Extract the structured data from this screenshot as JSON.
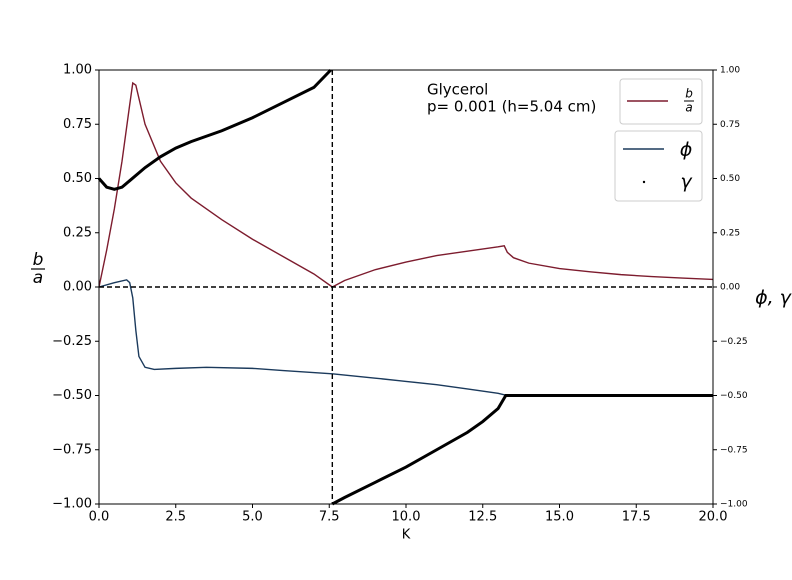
{
  "chart_data": {
    "type": "line",
    "xlabel": "K",
    "ylabel": {
      "numerator": "b",
      "denominator": "a"
    },
    "y2label": "ϕ, γ",
    "annotation": [
      "Glycerol",
      "p= 0.001 (h=5.04 cm)"
    ],
    "xlim": [
      0,
      20
    ],
    "ylim": [
      -1,
      1
    ],
    "y2lim": [
      -1,
      1
    ],
    "xticks": [
      {
        "value": 0,
        "label": "0.0"
      },
      {
        "value": 2.5,
        "label": "2.5"
      },
      {
        "value": 5,
        "label": "5.0"
      },
      {
        "value": 7.5,
        "label": "7.5"
      },
      {
        "value": 10,
        "label": "10.0"
      },
      {
        "value": 12.5,
        "label": "12.5"
      },
      {
        "value": 15,
        "label": "15.0"
      },
      {
        "value": 17.5,
        "label": "17.5"
      },
      {
        "value": 20,
        "label": "20.0"
      }
    ],
    "yticks": [
      {
        "value": -1,
        "label": "−1.00"
      },
      {
        "value": -0.75,
        "label": "−0.75"
      },
      {
        "value": -0.5,
        "label": "−0.50"
      },
      {
        "value": -0.25,
        "label": "−0.25"
      },
      {
        "value": 0,
        "label": "0.00"
      },
      {
        "value": 0.25,
        "label": "0.25"
      },
      {
        "value": 0.5,
        "label": "0.50"
      },
      {
        "value": 0.75,
        "label": "0.75"
      },
      {
        "value": 1,
        "label": "1.00"
      }
    ],
    "y2ticks": [
      {
        "value": -1,
        "label": "−1.00"
      },
      {
        "value": -0.75,
        "label": "−0.75"
      },
      {
        "value": -0.5,
        "label": "−0.50"
      },
      {
        "value": -0.25,
        "label": "−0.25"
      },
      {
        "value": 0,
        "label": "0.00"
      },
      {
        "value": 0.25,
        "label": "0.25"
      },
      {
        "value": 0.5,
        "label": "0.50"
      },
      {
        "value": 0.75,
        "label": "0.75"
      },
      {
        "value": 1,
        "label": "1.00"
      }
    ],
    "vlines": [
      7.6
    ],
    "hlines": [
      0
    ],
    "series": [
      {
        "name": {
          "numerator": "b",
          "denominator": "a"
        },
        "color": "#7d1c2e",
        "x": [
          0,
          0.25,
          0.5,
          0.75,
          1.0,
          1.1,
          1.2,
          1.5,
          2,
          2.5,
          3,
          4,
          5,
          6,
          7,
          7.6,
          8,
          9,
          10,
          11,
          12,
          13,
          13.2,
          13.3,
          13.5,
          14,
          15,
          16,
          17,
          18,
          19,
          20
        ],
        "values": [
          0,
          0.17,
          0.36,
          0.58,
          0.84,
          0.94,
          0.93,
          0.75,
          0.58,
          0.48,
          0.41,
          0.31,
          0.22,
          0.14,
          0.06,
          0,
          0.03,
          0.08,
          0.115,
          0.145,
          0.165,
          0.185,
          0.19,
          0.16,
          0.135,
          0.11,
          0.085,
          0.07,
          0.057,
          0.048,
          0.041,
          0.035
        ]
      },
      {
        "name": "ϕ",
        "color": "#1b3a5c",
        "axis": "y2",
        "x": [
          0,
          0.5,
          0.9,
          1.0,
          1.1,
          1.2,
          1.3,
          1.5,
          1.8,
          2.5,
          3.5,
          5,
          6,
          7.6,
          9,
          10,
          11,
          12,
          13,
          13.3,
          15,
          20
        ],
        "values": [
          0,
          0.02,
          0.033,
          0.02,
          -0.05,
          -0.2,
          -0.32,
          -0.37,
          -0.38,
          -0.375,
          -0.37,
          -0.375,
          -0.385,
          -0.4,
          -0.42,
          -0.435,
          -0.45,
          -0.47,
          -0.49,
          -0.5,
          -0.5,
          -0.5
        ]
      },
      {
        "name": "γ",
        "color": "#000000",
        "axis": "y2",
        "x": [
          0,
          0.25,
          0.5,
          0.75,
          1,
          1.5,
          2,
          2.5,
          3,
          4,
          5,
          6,
          7,
          7.55,
          7.58,
          7.6,
          8,
          9,
          10,
          11,
          12,
          12.5,
          13,
          13.25,
          14,
          16,
          18,
          20
        ],
        "values": [
          0.5,
          0.46,
          0.45,
          0.46,
          0.49,
          0.55,
          0.6,
          0.64,
          0.67,
          0.72,
          0.78,
          0.85,
          0.92,
          1.0,
          null,
          -1.0,
          -0.97,
          -0.9,
          -0.83,
          -0.75,
          -0.67,
          -0.62,
          -0.56,
          -0.5,
          -0.5,
          -0.5,
          -0.5,
          -0.5
        ]
      }
    ]
  }
}
